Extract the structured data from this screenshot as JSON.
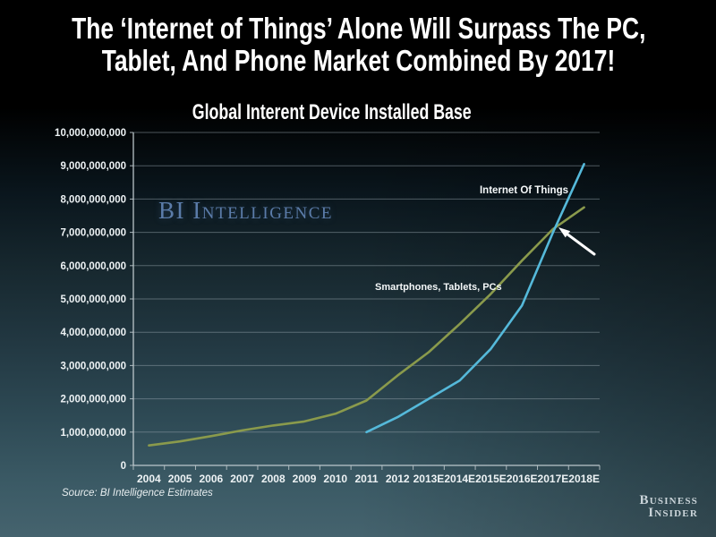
{
  "slide": {
    "headline_line1": "The ‘Internet of Things’ Alone Will Surpass The PC,",
    "headline_line2": "Tablet, And Phone Market Combined By 2017!",
    "watermark": "BI Intelligence",
    "watermark_color": "#5b7ca9",
    "source_note": "Source: BI Intelligence Estimates",
    "logo_line1": "Business",
    "logo_line2": "Insider"
  },
  "chart_data": {
    "type": "line",
    "title": "Global Interent Device Installed Base",
    "xlabel": "",
    "ylabel": "",
    "x_categories": [
      "2004",
      "2005",
      "2006",
      "2007",
      "2008",
      "2009",
      "2010",
      "2011",
      "2012",
      "2013E",
      "2014E",
      "2015E",
      "2016E",
      "2017E",
      "2018E"
    ],
    "y_tick_labels": [
      "0",
      "1,000,000,000",
      "2,000,000,000",
      "3,000,000,000",
      "4,000,000,000",
      "5,000,000,000",
      "6,000,000,000",
      "7,000,000,000",
      "8,000,000,000",
      "9,000,000,000",
      "10,000,000,000"
    ],
    "ylim": [
      0,
      10000000000
    ],
    "grid": true,
    "legend_position": "inline-labels-on-plot",
    "series": [
      {
        "name": "Smartphones, Tablets, PCs",
        "color": "#8a9a4c",
        "start_index": 0,
        "values": [
          600000000,
          720000000,
          880000000,
          1050000000,
          1200000000,
          1320000000,
          1550000000,
          1950000000,
          2700000000,
          3400000000,
          4250000000,
          5150000000,
          6150000000,
          7100000000,
          7750000000
        ]
      },
      {
        "name": "Internet Of Things",
        "color": "#55b9da",
        "start_index": 7,
        "values": [
          1000000000,
          1450000000,
          2000000000,
          2550000000,
          3500000000,
          4800000000,
          7000000000,
          9050000000
        ]
      }
    ],
    "annotation": {
      "type": "arrow",
      "color": "#ffffff",
      "points_to": "crossover where Internet Of Things passes Smartphones, Tablets, PCs near 2017E"
    }
  }
}
